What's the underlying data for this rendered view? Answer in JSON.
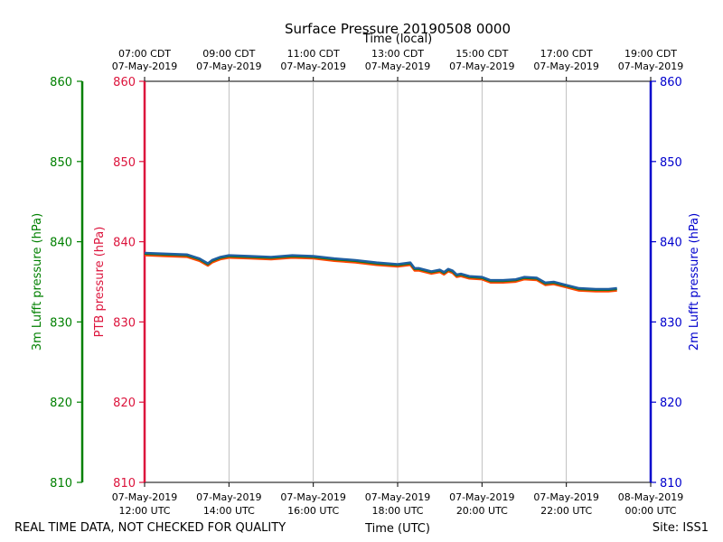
{
  "chart_data": {
    "type": "line",
    "title": "Surface Pressure 20190508 0000",
    "xlabel": "Time (UTC)",
    "x2label": "Time (local)",
    "ylabel_left_outer": "3m Lufft pressure (hPa)",
    "ylabel_left_inner": "PTB pressure (hPa)",
    "ylabel_right": "2m Lufft pressure (hPa)",
    "ylim": [
      810,
      860
    ],
    "y_ticks": [
      810,
      820,
      830,
      840,
      850,
      860
    ],
    "xlim_hours_utc": [
      12,
      24
    ],
    "x_ticks_bottom": [
      {
        "h": 12,
        "date": "07-May-2019",
        "time": "12:00 UTC"
      },
      {
        "h": 14,
        "date": "07-May-2019",
        "time": "14:00 UTC"
      },
      {
        "h": 16,
        "date": "07-May-2019",
        "time": "16:00 UTC"
      },
      {
        "h": 18,
        "date": "07-May-2019",
        "time": "18:00 UTC"
      },
      {
        "h": 20,
        "date": "07-May-2019",
        "time": "20:00 UTC"
      },
      {
        "h": 22,
        "date": "07-May-2019",
        "time": "22:00 UTC"
      },
      {
        "h": 24,
        "date": "08-May-2019",
        "time": "00:00 UTC"
      }
    ],
    "x_ticks_top": [
      {
        "h": 12,
        "time": "07:00 CDT",
        "date": "07-May-2019"
      },
      {
        "h": 14,
        "time": "09:00 CDT",
        "date": "07-May-2019"
      },
      {
        "h": 16,
        "time": "11:00 CDT",
        "date": "07-May-2019"
      },
      {
        "h": 18,
        "time": "13:00 CDT",
        "date": "07-May-2019"
      },
      {
        "h": 20,
        "time": "15:00 CDT",
        "date": "07-May-2019"
      },
      {
        "h": 22,
        "time": "17:00 CDT",
        "date": "07-May-2019"
      },
      {
        "h": 24,
        "time": "19:00 CDT",
        "date": "07-May-2019"
      }
    ],
    "grid": true,
    "colors": {
      "left_outer_axis": "#008000",
      "left_inner_axis": "#dc143c",
      "right_axis": "#0000cd",
      "grid": "#b0b0b0"
    },
    "series": [
      {
        "name": "PTB pressure",
        "color": "#ff4500",
        "x": [
          12.0,
          12.5,
          13.0,
          13.3,
          13.5,
          13.6,
          13.7,
          13.8,
          14.0,
          14.5,
          15.0,
          15.5,
          16.0,
          16.5,
          17.0,
          17.5,
          18.0,
          18.3,
          18.4,
          18.5,
          18.8,
          19.0,
          19.1,
          19.2,
          19.3,
          19.4,
          19.5,
          19.7,
          20.0,
          20.2,
          20.5,
          20.8,
          21.0,
          21.3,
          21.5,
          21.7,
          22.0,
          22.3,
          22.7,
          23.0,
          23.2
        ],
        "values": [
          838.3,
          838.2,
          838.1,
          837.6,
          837.0,
          837.4,
          837.6,
          837.8,
          838.0,
          837.9,
          837.8,
          838.0,
          837.9,
          837.6,
          837.4,
          837.1,
          836.9,
          837.1,
          836.4,
          836.4,
          836.0,
          836.2,
          835.9,
          836.3,
          836.1,
          835.6,
          835.7,
          835.4,
          835.3,
          834.9,
          834.9,
          835.0,
          835.3,
          835.2,
          834.6,
          834.7,
          834.3,
          833.9,
          833.8,
          833.8,
          833.9
        ]
      },
      {
        "name": "3m Lufft pressure",
        "color": "#008000",
        "x": [
          12.0,
          12.5,
          13.0,
          13.3,
          13.5,
          13.6,
          13.7,
          13.8,
          14.0,
          14.5,
          15.0,
          15.5,
          16.0,
          16.5,
          17.0,
          17.5,
          18.0,
          18.3,
          18.4,
          18.5,
          18.8,
          19.0,
          19.1,
          19.2,
          19.3,
          19.4,
          19.5,
          19.7,
          20.0,
          20.2,
          20.5,
          20.8,
          21.0,
          21.3,
          21.5,
          21.7,
          22.0,
          22.3,
          22.7,
          23.0,
          23.2
        ],
        "values": [
          838.5,
          838.4,
          838.3,
          837.8,
          837.2,
          837.6,
          837.8,
          838.0,
          838.2,
          838.1,
          838.0,
          838.2,
          838.1,
          837.8,
          837.6,
          837.3,
          837.1,
          837.3,
          836.6,
          836.6,
          836.2,
          836.4,
          836.1,
          836.5,
          836.3,
          835.8,
          835.9,
          835.6,
          835.5,
          835.1,
          835.1,
          835.2,
          835.5,
          835.4,
          834.8,
          834.9,
          834.5,
          834.1,
          834.0,
          834.0,
          834.1
        ]
      },
      {
        "name": "2m Lufft pressure",
        "color": "#1f5fa0",
        "x": [
          12.0,
          12.5,
          13.0,
          13.3,
          13.5,
          13.6,
          13.7,
          13.8,
          14.0,
          14.5,
          15.0,
          15.5,
          16.0,
          16.5,
          17.0,
          17.5,
          18.0,
          18.3,
          18.4,
          18.5,
          18.8,
          19.0,
          19.1,
          19.2,
          19.3,
          19.4,
          19.5,
          19.7,
          20.0,
          20.2,
          20.5,
          20.8,
          21.0,
          21.3,
          21.5,
          21.7,
          22.0,
          22.3,
          22.7,
          23.0,
          23.2
        ],
        "values": [
          838.6,
          838.5,
          838.4,
          837.9,
          837.3,
          837.7,
          837.9,
          838.1,
          838.3,
          838.2,
          838.1,
          838.3,
          838.2,
          837.9,
          837.7,
          837.4,
          837.2,
          837.4,
          836.7,
          836.7,
          836.3,
          836.5,
          836.2,
          836.6,
          836.4,
          835.9,
          836.0,
          835.7,
          835.6,
          835.2,
          835.2,
          835.3,
          835.6,
          835.5,
          834.9,
          835.0,
          834.6,
          834.2,
          834.1,
          834.1,
          834.2
        ]
      }
    ]
  },
  "footer": {
    "left_note": "REAL TIME DATA, NOT CHECKED FOR QUALITY",
    "site": "Site: ISS1"
  }
}
